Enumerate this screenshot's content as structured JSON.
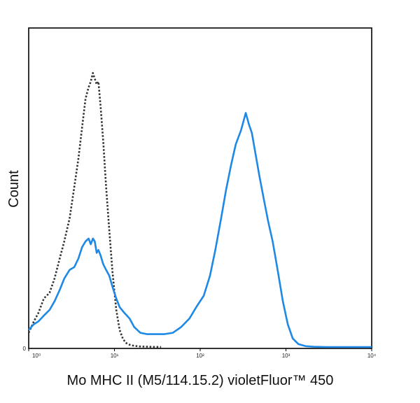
{
  "chart_data": {
    "type": "line",
    "subtype": "flow-cytometry-histogram",
    "title": "",
    "xlabel": "Mo MHC II (M5/114.15.2) violetFluor™ 450",
    "ylabel": "Count",
    "x_scale": "log",
    "xlim": [
      1,
      10000
    ],
    "ylim": [
      0,
      1
    ],
    "x_ticks": [
      {
        "value": 1,
        "label": "10⁰"
      },
      {
        "value": 10,
        "label": "10¹"
      },
      {
        "value": 100,
        "label": "10²"
      },
      {
        "value": 1000,
        "label": "10³"
      },
      {
        "value": 10000,
        "label": "10⁴"
      }
    ],
    "y_ticks": [
      {
        "value": 0,
        "label": "0"
      }
    ],
    "grid": false,
    "series": [
      {
        "style": "dotted",
        "color": "#333333",
        "x": [
          1.0,
          1.15,
          1.3,
          1.5,
          1.75,
          2.0,
          2.3,
          2.6,
          3.0,
          3.4,
          3.8,
          4.2,
          4.6,
          5.0,
          5.3,
          5.6,
          5.9,
          6.2,
          6.5,
          6.9,
          7.4,
          8.0,
          8.7,
          9.5,
          10.5,
          11.5,
          12.5,
          13.5,
          15.0,
          17.0,
          20.0,
          25.0,
          35.0
        ],
        "y": [
          0.05,
          0.09,
          0.12,
          0.17,
          0.19,
          0.24,
          0.31,
          0.37,
          0.45,
          0.56,
          0.66,
          0.77,
          0.87,
          0.91,
          0.93,
          0.96,
          0.94,
          0.92,
          0.93,
          0.84,
          0.72,
          0.56,
          0.41,
          0.26,
          0.13,
          0.06,
          0.03,
          0.015,
          0.008,
          0.004,
          0.002,
          0.001,
          0.0
        ]
      },
      {
        "style": "solid",
        "color": "#1e88e5",
        "x": [
          1.0,
          1.15,
          1.3,
          1.5,
          1.75,
          2.0,
          2.3,
          2.6,
          3.0,
          3.4,
          3.8,
          4.2,
          4.6,
          5.0,
          5.3,
          5.6,
          5.9,
          6.2,
          6.5,
          6.9,
          7.4,
          8.0,
          8.7,
          9.5,
          10.5,
          11.5,
          13.0,
          15.0,
          17.0,
          20.0,
          24.0,
          30.0,
          38.0,
          48.0,
          60.0,
          75.0,
          90.0,
          110.0,
          130.0,
          150.0,
          175.0,
          200.0,
          230.0,
          260.0,
          300.0,
          340.0,
          370.0,
          400.0,
          440.0,
          490.0,
          550.0,
          620.0,
          700.0,
          800.0,
          920.0,
          1050.0,
          1200.0,
          1400.0,
          1700.0,
          2100.0,
          3000.0,
          5000.0,
          10000.0
        ],
        "y": [
          0.06,
          0.08,
          0.09,
          0.11,
          0.13,
          0.16,
          0.2,
          0.24,
          0.27,
          0.28,
          0.31,
          0.35,
          0.37,
          0.38,
          0.36,
          0.38,
          0.37,
          0.33,
          0.34,
          0.32,
          0.29,
          0.27,
          0.25,
          0.21,
          0.17,
          0.14,
          0.12,
          0.1,
          0.07,
          0.05,
          0.045,
          0.045,
          0.045,
          0.05,
          0.07,
          0.1,
          0.14,
          0.18,
          0.25,
          0.34,
          0.45,
          0.55,
          0.64,
          0.71,
          0.76,
          0.82,
          0.78,
          0.75,
          0.68,
          0.6,
          0.52,
          0.44,
          0.37,
          0.27,
          0.16,
          0.08,
          0.03,
          0.01,
          0.003,
          0.001,
          0.0,
          0.0,
          0.0
        ]
      }
    ]
  }
}
